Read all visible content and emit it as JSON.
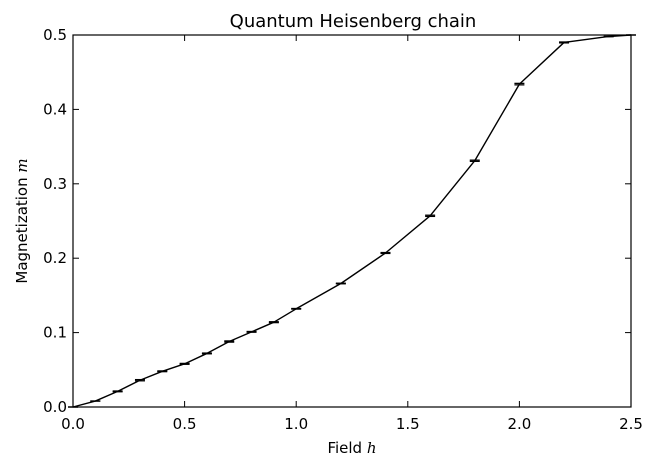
{
  "chart_data": {
    "type": "line",
    "title": "Quantum Heisenberg chain",
    "xlabel": "Field",
    "xlabel_var": "h",
    "ylabel": "Magnetization",
    "ylabel_var": "m",
    "xlim": [
      0.0,
      2.5
    ],
    "ylim": [
      0.0,
      0.5
    ],
    "xticks": [
      "0.0",
      "0.5",
      "1.0",
      "1.5",
      "2.0",
      "2.5"
    ],
    "yticks": [
      "0.0",
      "0.1",
      "0.2",
      "0.3",
      "0.4",
      "0.5"
    ],
    "grid": false,
    "legend": "none",
    "series": [
      {
        "x": [
          0.0,
          0.1,
          0.2,
          0.3,
          0.4,
          0.5,
          0.6,
          0.7,
          0.8,
          0.9,
          1.0,
          1.2,
          1.4,
          1.6,
          1.8,
          2.0,
          2.2,
          2.4,
          2.5
        ],
        "y": [
          0.0,
          0.008,
          0.021,
          0.036,
          0.048,
          0.058,
          0.072,
          0.088,
          0.101,
          0.114,
          0.132,
          0.166,
          0.207,
          0.257,
          0.331,
          0.434,
          0.49,
          0.498,
          0.5
        ],
        "yerr": [
          0.0,
          0.0,
          0.0005,
          0.0008,
          0.0005,
          0.0006,
          0.0005,
          0.0008,
          0.0005,
          0.0006,
          0.0004,
          0.0004,
          0.0006,
          0.0008,
          0.0008,
          0.001,
          0.0006,
          0.0003,
          0.0
        ],
        "color": "#000000",
        "errorbars": true
      }
    ]
  }
}
